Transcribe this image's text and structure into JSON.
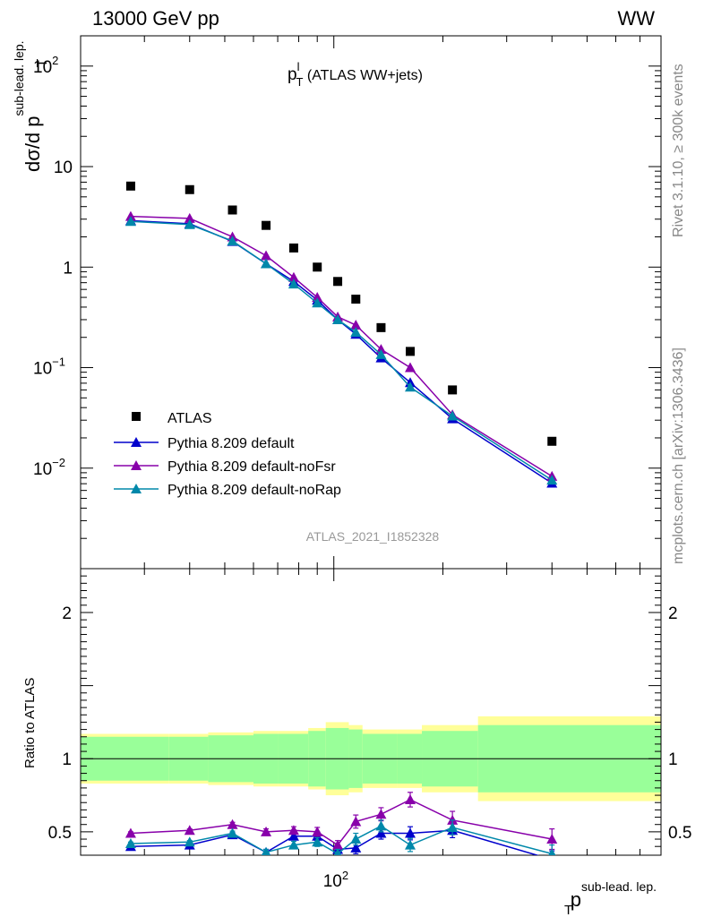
{
  "header": {
    "left": "13000 GeV pp",
    "right": "WW"
  },
  "side_labels": {
    "rivet": "Rivet 3.1.10, ≥ 300k events",
    "mcplots": "mcplots.cern.ch [arXiv:1306.3436]"
  },
  "watermark": "ATLAS_2021_I1852328",
  "chart_data": [
    {
      "type": "scatter",
      "title_main": "p",
      "title_sup": "l",
      "title_sub": "T",
      "title_rest": " (ATLAS WW+jets)",
      "ylabel_main": "dσ/d p",
      "ylabel_sup": "sub-lead. lep.",
      "ylabel_sub": "T",
      "yscale": "log",
      "ylim": [
        0.001,
        200
      ],
      "ytick_labels": [
        {
          "value": 100,
          "base": "10",
          "exp": "2"
        },
        {
          "value": 10,
          "base": "10",
          "exp": ""
        },
        {
          "value": 1,
          "base": "1",
          "exp": ""
        },
        {
          "value": 0.1,
          "base": "10",
          "exp": "−1"
        },
        {
          "value": 0.01,
          "base": "10",
          "exp": "−2"
        }
      ],
      "legend_position": "bottom-left",
      "x": [
        27.5,
        40,
        52.5,
        65,
        77.5,
        90,
        102.5,
        115,
        135,
        162.5,
        212.5,
        400
      ],
      "series": [
        {
          "name": "ATLAS",
          "color": "#000000",
          "marker": "square",
          "values": [
            6.4,
            5.9,
            3.7,
            2.6,
            1.55,
            1.0,
            0.72,
            0.48,
            0.25,
            0.145,
            0.06,
            0.0185
          ]
        },
        {
          "name": "Pythia 8.209 default",
          "color": "#0000cc",
          "marker": "triangle",
          "values": [
            2.9,
            2.7,
            1.8,
            1.08,
            0.72,
            0.47,
            0.3,
            0.215,
            0.125,
            0.071,
            0.031,
            0.0071
          ]
        },
        {
          "name": "Pythia 8.209 default-noFsr",
          "color": "#8800aa",
          "marker": "triangle",
          "values": [
            3.2,
            3.05,
            2.0,
            1.3,
            0.79,
            0.5,
            0.32,
            0.265,
            0.152,
            0.1,
            0.034,
            0.0083
          ]
        },
        {
          "name": "Pythia 8.209 default-noRap",
          "color": "#0088aa",
          "marker": "triangle",
          "values": [
            2.85,
            2.65,
            1.82,
            1.08,
            0.68,
            0.44,
            0.3,
            0.225,
            0.135,
            0.064,
            0.033,
            0.0076
          ]
        }
      ]
    },
    {
      "type": "line",
      "ylabel": "Ratio to ATLAS",
      "xlabel_main": "p",
      "xlabel_sup": "sub-lead. lep.",
      "xlabel_sub": "T",
      "xscale": "log",
      "xlim": [
        20,
        800
      ],
      "x_tick_label": {
        "value": 100,
        "base": "10",
        "exp": "2"
      },
      "ylim": [
        0.34,
        2.3
      ],
      "ytick_labels": [
        {
          "value": 2,
          "label": "2"
        },
        {
          "value": 1,
          "label": "1"
        },
        {
          "value": 0.5,
          "label": "0.5"
        }
      ],
      "bin_edges": [
        20,
        35,
        45,
        60,
        70,
        85,
        95,
        110,
        120,
        150,
        175,
        250,
        800
      ],
      "band_outer": [
        0.17,
        0.17,
        0.18,
        0.19,
        0.19,
        0.21,
        0.25,
        0.23,
        0.2,
        0.2,
        0.23,
        0.29
      ],
      "band_inner": [
        0.15,
        0.15,
        0.16,
        0.17,
        0.17,
        0.19,
        0.21,
        0.2,
        0.17,
        0.17,
        0.19,
        0.23
      ],
      "x": [
        27.5,
        40,
        52.5,
        65,
        77.5,
        90,
        102.5,
        115,
        135,
        162.5,
        212.5,
        400
      ],
      "series": [
        {
          "name": "Pythia 8.209 default",
          "color": "#0000cc",
          "values": [
            0.4,
            0.41,
            0.48,
            0.36,
            0.47,
            0.47,
            0.38,
            0.39,
            0.49,
            0.49,
            0.51,
            0.31
          ],
          "errors": [
            0.01,
            0.01,
            0.015,
            0.02,
            0.025,
            0.03,
            0.03,
            0.04,
            0.04,
            0.045,
            0.05,
            0.06
          ]
        },
        {
          "name": "Pythia 8.209 default-noFsr",
          "color": "#8800aa",
          "values": [
            0.49,
            0.51,
            0.55,
            0.5,
            0.51,
            0.5,
            0.41,
            0.57,
            0.62,
            0.72,
            0.58,
            0.45
          ],
          "errors": [
            0.01,
            0.01,
            0.015,
            0.02,
            0.025,
            0.03,
            0.03,
            0.045,
            0.045,
            0.05,
            0.06,
            0.07
          ]
        },
        {
          "name": "Pythia 8.209 default-noRap",
          "color": "#0088aa",
          "values": [
            0.42,
            0.43,
            0.49,
            0.36,
            0.41,
            0.43,
            0.35,
            0.45,
            0.54,
            0.41,
            0.53,
            0.35
          ],
          "errors": [
            0.01,
            0.01,
            0.015,
            0.02,
            0.025,
            0.03,
            0.03,
            0.04,
            0.04,
            0.045,
            0.05,
            0.06
          ]
        }
      ]
    }
  ]
}
